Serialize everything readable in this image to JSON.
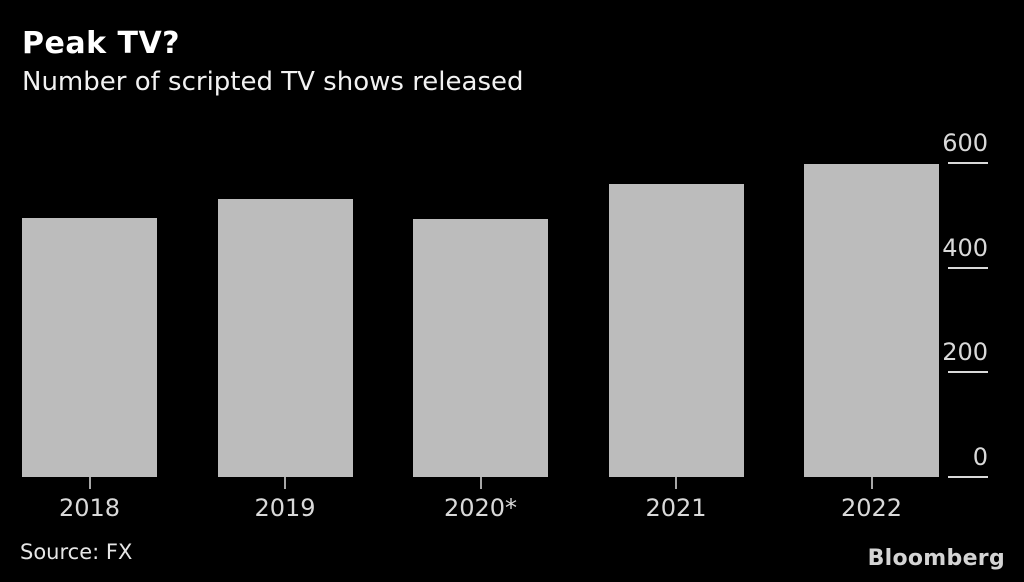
{
  "header": {
    "title": "Peak TV?",
    "subtitle": "Number of scripted TV shows released"
  },
  "footer": {
    "source": "Source: FX",
    "brand": "Bloomberg"
  },
  "colors": {
    "background": "#000000",
    "bar": "#bcbcbc",
    "title_text": "#ffffff",
    "axis_text": "#d9d9d9"
  },
  "chart_data": {
    "type": "bar",
    "categories": [
      "2018",
      "2019",
      "2020*",
      "2021",
      "2022"
    ],
    "values": [
      495,
      532,
      493,
      559,
      599
    ],
    "title": "Peak TV?",
    "subtitle": "Number of scripted TV shows released",
    "xlabel": "",
    "ylabel": "",
    "yticks": [
      0,
      200,
      400,
      600
    ],
    "ylim": [
      0,
      600
    ],
    "grid": false,
    "legend": "none",
    "y_axis_side": "right",
    "source": "Source: FX"
  }
}
